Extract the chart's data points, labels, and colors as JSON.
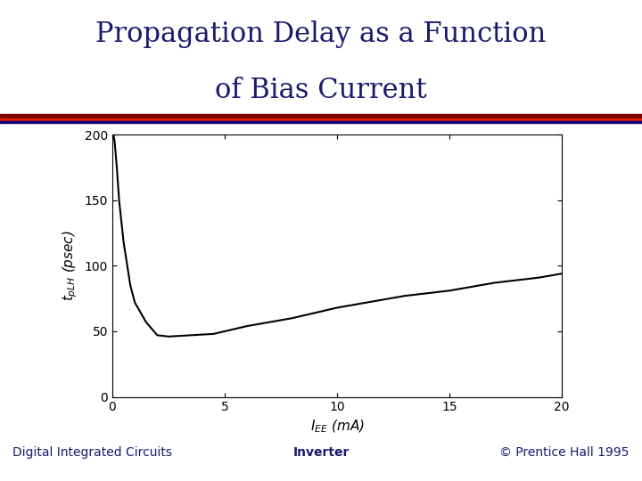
{
  "title_line1": "Propagation Delay as a Function",
  "title_line2": "of Bias Current",
  "title_color": "#1a1a6e",
  "title_fontsize": 22,
  "background_color": "#ffffff",
  "xlabel": "$I_{EE}$ (mA)",
  "ylabel": "$t_{pLH}$ (psec)",
  "xlabel_fontsize": 11,
  "ylabel_fontsize": 11,
  "xlim": [
    0,
    20
  ],
  "ylim": [
    0,
    200
  ],
  "xticks": [
    0,
    5,
    10,
    15,
    20
  ],
  "yticks": [
    0,
    50,
    100,
    150,
    200
  ],
  "line_color": "#000000",
  "line_width": 1.5,
  "footer_left": "Digital Integrated Circuits",
  "footer_center": "Inverter",
  "footer_right": "© Prentice Hall 1995",
  "footer_fontsize": 10,
  "bar_dark_red": "#7a0000",
  "bar_bright_red": "#dd2200",
  "bar_blue": "#00007a"
}
